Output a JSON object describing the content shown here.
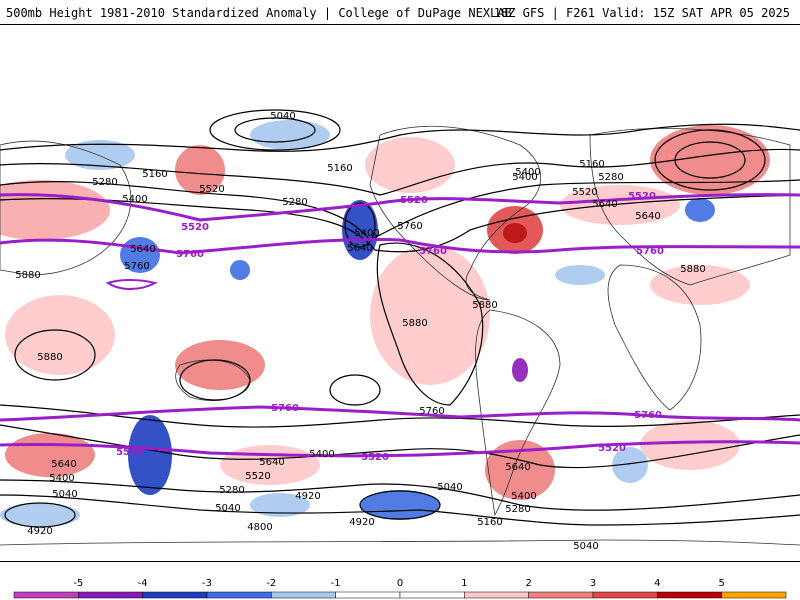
{
  "header": {
    "left_title": "500mb Height 1981-2010 Standardized Anomaly | College of DuPage NEXLAB",
    "right_title": "18Z GFS | F261 Valid: 15Z SAT APR 05 2025"
  },
  "colors": {
    "neg5": "#c040c0",
    "neg4": "#8a1ab8",
    "neg3": "#1f3fbf",
    "neg2": "#3f6ee0",
    "neg1": "#a8c8f0",
    "zero": "#ffffff",
    "pos1": "#ffc8c8",
    "pos2": "#f08080",
    "pos3": "#e04848",
    "pos4": "#b80000",
    "pos5": "#ffa500",
    "highlight_contour": "#9b1fc9",
    "contour": "#000000"
  },
  "colorbar": {
    "ticks": [
      "-5",
      "-4",
      "-3",
      "-2",
      "-1",
      "0",
      "1",
      "2",
      "3",
      "4",
      "5"
    ]
  },
  "map_labels": {
    "l5040_a": "5040",
    "l5160_a": "5160",
    "l5280_a": "5280",
    "l5400_a": "5400",
    "l5520_a": "5520",
    "l5640_a": "5640",
    "l5760_a": "5760",
    "l5880_a": "5880",
    "l5280_b": "5280",
    "l5160_b": "5160",
    "l5520_b": "5520",
    "l5400_b": "5400",
    "l5640_b": "5640",
    "l5760_b": "5760",
    "l5160_c": "5160",
    "l5280_c": "5280",
    "l5400_c": "5400",
    "l5520_c": "5520",
    "l5640_c": "5640",
    "l5520_d": "5520",
    "l5640_d": "5640",
    "l5760_d": "5760",
    "l5880_b": "5880",
    "l5880_c": "5880",
    "l5880_d": "5880",
    "l5880_e": "5880",
    "l5760_e": "5760",
    "l5760_f": "5760",
    "l5760_g": "5760",
    "l5520_e": "5520",
    "l5520_f": "5520",
    "l5400_d": "5400",
    "l5640_e": "5640",
    "l5520_g": "5520",
    "l5040_b": "5040",
    "l4920_a": "4920",
    "l4920_b": "4920",
    "l4800": "4800",
    "l5040_c": "5040",
    "l4920_c": "4920",
    "l5400_e": "5400",
    "l5280_d": "5280",
    "l5160_d": "5160",
    "l5040_d": "5040",
    "l5640_f": "5640",
    "l5400_f": "5400",
    "l5640_g": "5640",
    "l5520_h": "5520",
    "l5760_h": "5760",
    "l5520_i": "5520",
    "l5760_i": "5760",
    "l5280_e": "5280",
    "l5040_e": "5040",
    "l5400_g": "5400"
  }
}
